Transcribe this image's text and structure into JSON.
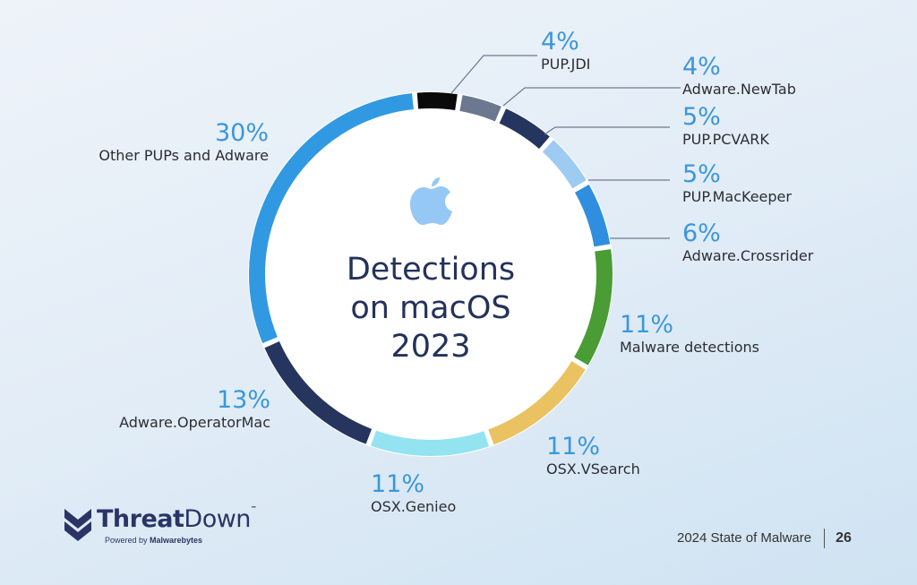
{
  "chart_data": {
    "type": "pie",
    "variant": "donut",
    "title": "Detections on macOS 2023",
    "center_lines": [
      "Detections",
      "on macOS",
      "2023"
    ],
    "unit": "%",
    "slices": [
      {
        "label": "PUP.JDI",
        "value": 4,
        "color": "#0a0a0a"
      },
      {
        "label": "Adware.NewTab",
        "value": 4,
        "color": "#6b7890"
      },
      {
        "label": "PUP.PCVARK",
        "value": 5,
        "color": "#24365f"
      },
      {
        "label": "PUP.MacKeeper",
        "value": 5,
        "color": "#9dcbf2"
      },
      {
        "label": "Adware.Crossrider",
        "value": 6,
        "color": "#2f8fde"
      },
      {
        "label": "Malware detections",
        "value": 11,
        "color": "#4a9c35"
      },
      {
        "label": "OSX.VSearch",
        "value": 11,
        "color": "#eac262"
      },
      {
        "label": "OSX.Genieo",
        "value": 11,
        "color": "#94e3f1"
      },
      {
        "label": "Adware.OperatorMac",
        "value": 13,
        "color": "#25355e"
      },
      {
        "label": "Other PUPs and Adware",
        "value": 30,
        "color": "#3199e2"
      }
    ]
  },
  "labels": {
    "pup_jdi": {
      "pct": "4%",
      "name": "PUP.JDI"
    },
    "newtab": {
      "pct": "4%",
      "name": "Adware.NewTab"
    },
    "pcvark": {
      "pct": "5%",
      "name": "PUP.PCVARK"
    },
    "mackeeper": {
      "pct": "5%",
      "name": "PUP.MacKeeper"
    },
    "crossrider": {
      "pct": "6%",
      "name": "Adware.Crossrider"
    },
    "malware": {
      "pct": "11%",
      "name": "Malware detections"
    },
    "vsearch": {
      "pct": "11%",
      "name": "OSX.VSearch"
    },
    "genieo": {
      "pct": "11%",
      "name": "OSX.Genieo"
    },
    "operatormac": {
      "pct": "13%",
      "name": "Adware.OperatorMac"
    },
    "other": {
      "pct": "30%",
      "name": "Other PUPs and Adware"
    }
  },
  "center": {
    "line1": "Detections",
    "line2": "on macOS",
    "line3": "2023",
    "icon": "apple-icon"
  },
  "logo": {
    "brand_bold": "Threat",
    "brand_light": "Down",
    "tm": "™",
    "powered_prefix": "Powered by ",
    "powered_brand": "Malwarebytes"
  },
  "footer": {
    "report": "2024 State of Malware",
    "page": "26"
  }
}
